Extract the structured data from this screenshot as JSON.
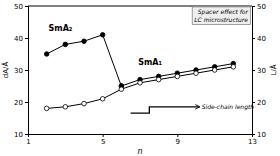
{
  "chart_data": {
    "type": "line",
    "title": "Spacer effect for\nLC microstructure",
    "x_label": "n",
    "y_label": "dA/Å",
    "y2_label": "L/Å",
    "xlim": [
      1,
      13
    ],
    "xticks": [
      1,
      5,
      9,
      13
    ],
    "ylim": [
      10,
      50
    ],
    "yticks": [
      10,
      20,
      30,
      40,
      50
    ],
    "y2lim": [
      10,
      50
    ],
    "y2ticks": [
      10,
      20,
      30,
      40,
      50
    ],
    "grid": false,
    "series": [
      {
        "color": "#000000",
        "marker": "circle",
        "x": [
          2,
          3,
          4,
          5,
          6
        ],
        "values": [
          35,
          38,
          39,
          41,
          25
        ]
      },
      {
        "color": "#000000",
        "marker": "circle",
        "x": [
          6,
          7,
          8,
          9,
          10,
          11,
          12
        ],
        "values": [
          25,
          27,
          28,
          29,
          30,
          31,
          32
        ]
      },
      {
        "color": "#000000",
        "marker": "open-circle",
        "x": [
          2,
          3,
          4,
          5,
          6,
          7,
          8,
          9,
          10,
          11,
          12
        ],
        "values": [
          18,
          18.5,
          19.5,
          21,
          24,
          26,
          27,
          28,
          29,
          30,
          31
        ]
      }
    ],
    "annotations": [
      {
        "text": "SmA₂",
        "x": 2.1,
        "y": 43
      },
      {
        "text": "SmA₁",
        "x": 6.9,
        "y": 32.5
      },
      {
        "text": "Side-chain length",
        "x": 10.2,
        "y": 18.5,
        "path_x": [
          6.5,
          7.5,
          7.5,
          10.2
        ],
        "path_y": [
          16.5,
          16.5,
          18.5,
          18.5
        ]
      }
    ]
  }
}
